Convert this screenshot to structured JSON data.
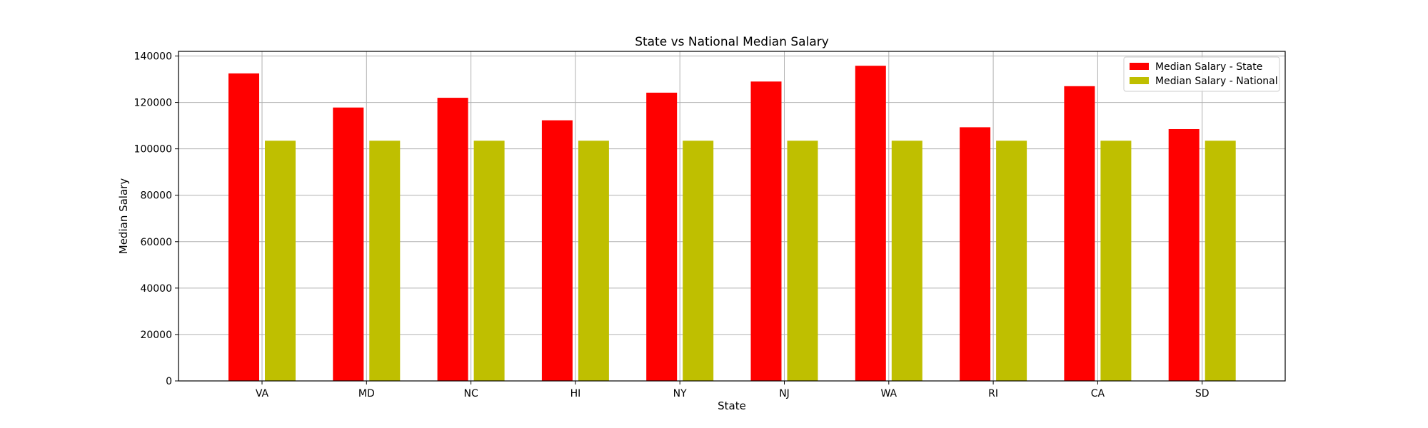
{
  "chart_data": {
    "type": "bar",
    "title": "State vs National Median Salary",
    "xlabel": "State",
    "ylabel": "Median Salary",
    "categories": [
      "VA",
      "MD",
      "NC",
      "HI",
      "NY",
      "NJ",
      "WA",
      "RI",
      "CA",
      "SD"
    ],
    "series": [
      {
        "name": "Median Salary - State",
        "color": "#ff0000",
        "values": [
          132500,
          117800,
          122000,
          112300,
          124200,
          129000,
          135800,
          109300,
          127000,
          108500
        ]
      },
      {
        "name": "Median Salary - National",
        "color": "#bfbf00",
        "values": [
          103500,
          103500,
          103500,
          103500,
          103500,
          103500,
          103500,
          103500,
          103500,
          103500
        ]
      }
    ],
    "ylim": [
      0,
      142000
    ],
    "yticks": [
      0,
      20000,
      40000,
      60000,
      80000,
      100000,
      120000,
      140000
    ],
    "grid": true,
    "legend_position": "top-right"
  }
}
